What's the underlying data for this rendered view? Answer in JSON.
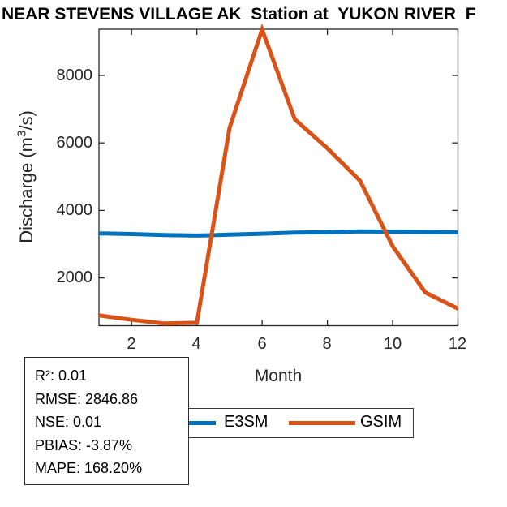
{
  "title": "NEAR STEVENS VILLAGE AK  Station at  YUKON RIVER  F",
  "axes": {
    "xlabel": "Month",
    "ylabel_pre": "Discharge (m",
    "ylabel_sup": "3",
    "ylabel_post": "/s)"
  },
  "chart_data": {
    "type": "line",
    "title": "NEAR STEVENS VILLAGE AK  Station at  YUKON RIVER  F",
    "xlabel": "Month",
    "ylabel": "Discharge (m^3/s)",
    "x": [
      1,
      2,
      3,
      4,
      5,
      6,
      7,
      8,
      9,
      10,
      11,
      12
    ],
    "xlim": [
      1,
      12
    ],
    "ylim": [
      584,
      9370
    ],
    "xtick_labels": [
      "2",
      "4",
      "6",
      "8",
      "10",
      "12"
    ],
    "ytick_labels": [
      "2000",
      "4000",
      "6000",
      "8000"
    ],
    "xtick_values": [
      2,
      4,
      6,
      8,
      10,
      12
    ],
    "ytick_values": [
      2000,
      4000,
      6000,
      8000
    ],
    "grid": false,
    "legend_position": "below-axes",
    "series": [
      {
        "name": "E3SM",
        "color": "#0072BD",
        "values": [
          3320,
          3300,
          3270,
          3255,
          3280,
          3310,
          3340,
          3355,
          3380,
          3370,
          3360,
          3355
        ]
      },
      {
        "name": "GSIM",
        "color": "#D95319",
        "values": [
          890,
          760,
          650,
          670,
          6440,
          9360,
          6700,
          5840,
          4880,
          2940,
          1570,
          1090
        ]
      }
    ]
  },
  "legend": {
    "items": [
      {
        "label": "E3SM",
        "color": "#0072BD"
      },
      {
        "label": "GSIM",
        "color": "#D95319"
      }
    ]
  },
  "stats_box": {
    "lines": [
      "R²: 0.01",
      "RMSE: 2846.86",
      "NSE: 0.01",
      "PBIAS: -3.87%",
      "MAPE: 168.20%"
    ]
  },
  "colors": {
    "axis": "#262626",
    "tick_text": "#262626",
    "background": "#ffffff",
    "e3sm_blue": "#0072BD",
    "gsim_orange": "#D95319"
  }
}
